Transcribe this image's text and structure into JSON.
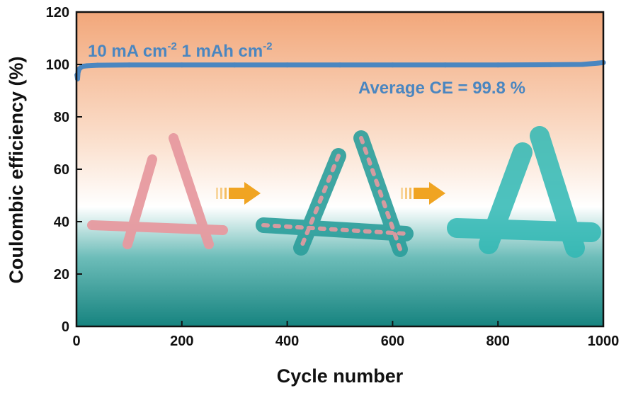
{
  "chart_data": {
    "type": "scatter",
    "title": "",
    "xlabel": "Cycle number",
    "ylabel": "Coulombic efficiency (%)",
    "xlim": [
      0,
      1000
    ],
    "ylim": [
      0,
      120
    ],
    "xticks": [
      0,
      200,
      400,
      600,
      800,
      1000
    ],
    "yticks": [
      0,
      20,
      40,
      60,
      80,
      100,
      120
    ],
    "grid": false,
    "series": [
      {
        "name": "Coulombic efficiency",
        "color": "#4a86c0",
        "x": [
          1,
          2,
          3,
          5,
          8,
          12,
          20,
          40,
          100,
          200,
          300,
          400,
          500,
          600,
          700,
          800,
          900,
          960,
          990,
          1000
        ],
        "values": [
          96.0,
          94.5,
          97.0,
          98.2,
          98.8,
          99.3,
          99.5,
          99.7,
          99.8,
          99.8,
          99.8,
          99.8,
          99.8,
          99.8,
          99.8,
          99.8,
          99.9,
          100.0,
          100.5,
          100.7
        ]
      }
    ],
    "annotations": {
      "condition_prefix": "10 mA cm",
      "condition_exp1": "-2",
      "condition_mid": " 1 mAh cm",
      "condition_exp2": "-2",
      "average_ce": "Average CE = 99.8 %"
    },
    "colors": {
      "accent": "#4a86c0",
      "bg_top": "#f2a77a",
      "bg_mid": "#ffffff",
      "bg_bottom": "#1f8a86",
      "arrow": "#f0a422",
      "pink": "#e79aa0",
      "teal": "#2fb8b4"
    }
  }
}
